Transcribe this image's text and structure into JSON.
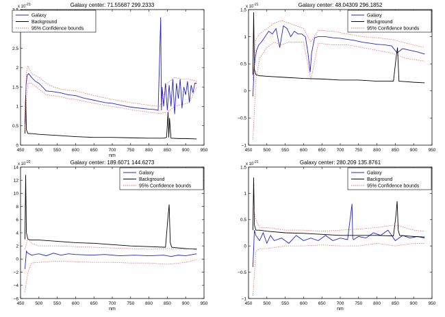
{
  "chart_data": [
    {
      "type": "line",
      "title": "Galaxy center: 71.55687     299.2333",
      "xlabel": "nm",
      "ylabel": "",
      "exponent_label": "x 10",
      "exponent_power": "-21",
      "xlim": [
        450,
        950
      ],
      "ylim": [
        0,
        3.5
      ],
      "xticks": [
        450,
        500,
        550,
        600,
        650,
        700,
        750,
        800,
        850,
        900,
        950
      ],
      "yticks": [
        0,
        0.5,
        1,
        1.5,
        2,
        2.5,
        3,
        3.5
      ],
      "ytick_labels": [
        "0",
        "0.5",
        "1",
        "1.5",
        "2",
        "2.5",
        "3",
        "3.5"
      ],
      "grid": false,
      "legend_position": "top-left",
      "legend": [
        "Galaxy",
        "Background",
        "95% Confidence bounds"
      ],
      "series": [
        {
          "name": "Galaxy",
          "color": "#1f1fd9",
          "x": [
            462,
            465,
            468,
            472,
            476,
            480,
            490,
            500,
            510,
            520,
            540,
            560,
            580,
            600,
            620,
            640,
            660,
            680,
            700,
            720,
            740,
            760,
            780,
            800,
            815,
            825,
            832,
            834,
            836,
            840,
            845,
            850,
            855,
            860,
            865,
            870,
            875,
            880,
            885,
            890,
            895,
            900,
            905,
            910,
            915,
            920,
            925,
            930
          ],
          "y": [
            0.55,
            1.55,
            1.8,
            1.85,
            1.8,
            1.75,
            1.65,
            1.6,
            1.5,
            1.4,
            1.38,
            1.35,
            1.3,
            1.28,
            1.22,
            1.18,
            1.14,
            1.1,
            1.08,
            1.04,
            1.0,
            0.97,
            0.95,
            0.93,
            0.92,
            0.9,
            3.3,
            0.9,
            1.5,
            1.0,
            1.6,
            0.9,
            1.55,
            1.0,
            1.7,
            0.8,
            1.6,
            1.2,
            1.7,
            0.95,
            1.5,
            1.3,
            1.65,
            1.1,
            1.55,
            1.35,
            1.6,
            1.6
          ]
        },
        {
          "name": "Background",
          "color": "#000000",
          "x": [
            462,
            464,
            466,
            470,
            480,
            500,
            550,
            600,
            650,
            700,
            750,
            800,
            840,
            848,
            852,
            854,
            856,
            860,
            880,
            900,
            930
          ],
          "y": [
            0.3,
            1.3,
            0.4,
            0.3,
            0.3,
            0.28,
            0.25,
            0.22,
            0.2,
            0.2,
            0.19,
            0.18,
            0.18,
            0.2,
            0.85,
            0.2,
            0.7,
            0.18,
            0.17,
            0.17,
            0.16
          ]
        },
        {
          "name": "95% Confidence bounds",
          "color": "#ff5050",
          "x": [
            462,
            466,
            470,
            480,
            500,
            520,
            540,
            560,
            580,
            600,
            650,
            700,
            750,
            800,
            830,
            850,
            870,
            890,
            910,
            930
          ],
          "y": [
            0.7,
            1.9,
            2.05,
            1.85,
            1.75,
            1.6,
            1.5,
            1.45,
            1.42,
            1.4,
            1.28,
            1.18,
            1.1,
            1.03,
            1.0,
            1.6,
            1.75,
            1.7,
            1.7,
            1.65
          ]
        },
        {
          "name": "95% Confidence bounds",
          "color": "#ff5050",
          "x": [
            462,
            466,
            470,
            480,
            500,
            520,
            540,
            560,
            580,
            600,
            650,
            700,
            750,
            800,
            830,
            850,
            870,
            890,
            910,
            930
          ],
          "y": [
            0.4,
            1.2,
            1.6,
            1.6,
            1.45,
            1.3,
            1.28,
            1.25,
            1.2,
            1.18,
            1.08,
            1.0,
            0.92,
            0.85,
            0.82,
            0.85,
            1.0,
            1.05,
            1.1,
            1.5
          ]
        }
      ]
    },
    {
      "type": "line",
      "title": "Galaxy center: 48.04309     296.1852",
      "xlabel": "",
      "ylabel": "",
      "exponent_label": "x 10",
      "exponent_power": "-21",
      "xlim": [
        450,
        950
      ],
      "ylim": [
        -1,
        1.5
      ],
      "xticks": [
        450,
        500,
        550,
        600,
        650,
        700,
        750,
        800,
        850,
        900,
        950
      ],
      "yticks": [
        -1,
        -0.5,
        0,
        0.5,
        1,
        1.5
      ],
      "ytick_labels": [
        "−1",
        "−0.5",
        "0",
        "0.5",
        "1",
        "1.5"
      ],
      "grid": false,
      "legend_position": "top-right",
      "legend": [
        "Galaxy",
        "Background",
        "95% Confidence bounds"
      ],
      "series": [
        {
          "name": "Galaxy",
          "color": "#1f1fd9",
          "x": [
            462,
            465,
            468,
            472,
            478,
            485,
            495,
            505,
            515,
            525,
            535,
            545,
            555,
            565,
            575,
            585,
            595,
            605,
            612,
            618,
            622,
            630,
            640,
            660,
            680,
            700,
            720,
            740,
            760,
            780,
            800,
            820,
            840,
            855,
            870,
            890,
            910,
            930
          ],
          "y": [
            -0.1,
            0.4,
            0.6,
            0.75,
            0.85,
            0.9,
            1.0,
            1.1,
            1.05,
            1.15,
            0.8,
            1.2,
            1.15,
            1.0,
            1.1,
            1.05,
            1.05,
            1.0,
            0.7,
            0.35,
            0.7,
            0.98,
            1.0,
            1.0,
            0.98,
            0.97,
            0.95,
            0.93,
            0.9,
            0.88,
            0.86,
            0.85,
            0.83,
            0.7,
            0.78,
            0.75,
            0.72,
            0.68
          ]
        },
        {
          "name": "Background",
          "color": "#000000",
          "x": [
            462,
            464,
            466,
            470,
            480,
            500,
            550,
            600,
            650,
            700,
            750,
            800,
            845,
            852,
            856,
            860,
            880,
            900,
            930
          ],
          "y": [
            0.3,
            1.45,
            0.4,
            0.3,
            0.28,
            0.27,
            0.25,
            0.23,
            0.22,
            0.2,
            0.2,
            0.18,
            0.18,
            0.6,
            0.8,
            0.18,
            0.17,
            0.16,
            0.15
          ]
        },
        {
          "name": "95% Confidence bounds",
          "color": "#ff5050",
          "x": [
            462,
            470,
            480,
            500,
            520,
            540,
            560,
            580,
            600,
            620,
            640,
            680,
            720,
            760,
            800,
            840,
            880,
            930
          ],
          "y": [
            0.2,
            0.95,
            1.05,
            1.15,
            1.25,
            1.3,
            1.25,
            1.2,
            1.15,
            0.9,
            1.12,
            1.1,
            1.05,
            1.0,
            0.98,
            0.95,
            0.88,
            0.8
          ]
        },
        {
          "name": "95% Confidence bounds",
          "color": "#ff5050",
          "x": [
            462,
            470,
            480,
            500,
            520,
            540,
            560,
            580,
            600,
            620,
            640,
            680,
            720,
            760,
            800,
            840,
            880,
            930
          ],
          "y": [
            -0.9,
            0.2,
            0.6,
            0.8,
            0.9,
            0.85,
            0.9,
            0.9,
            0.9,
            0.2,
            0.88,
            0.85,
            0.85,
            0.8,
            0.75,
            0.7,
            0.6,
            0.55
          ]
        }
      ]
    },
    {
      "type": "line",
      "title": "Galaxy center: 189.6071     144.6273",
      "xlabel": "nm",
      "ylabel": "",
      "exponent_label": "x 10",
      "exponent_power": "-22",
      "xlim": [
        450,
        950
      ],
      "ylim": [
        -6,
        14
      ],
      "xticks": [
        450,
        500,
        550,
        600,
        650,
        700,
        750,
        800,
        850,
        900,
        950
      ],
      "yticks": [
        -6,
        -4,
        -2,
        0,
        2,
        4,
        6,
        8,
        10,
        12,
        14
      ],
      "ytick_labels": [
        "−6",
        "−4",
        "−2",
        "0",
        "2",
        "4",
        "6",
        "8",
        "10",
        "12",
        "14"
      ],
      "grid": false,
      "legend_position": "top-right",
      "legend": [
        "Galaxy",
        "Background",
        "95% Confidence bounds"
      ],
      "series": [
        {
          "name": "Galaxy",
          "color": "#1f1fd9",
          "x": [
            462,
            466,
            470,
            480,
            500,
            520,
            540,
            560,
            580,
            600,
            640,
            680,
            720,
            760,
            800,
            840,
            860,
            880,
            900,
            930
          ],
          "y": [
            -1.5,
            1.2,
            0.9,
            0.6,
            0.8,
            0.5,
            0.9,
            0.6,
            0.8,
            0.7,
            0.6,
            0.7,
            0.5,
            0.6,
            0.5,
            0.6,
            0.4,
            0.6,
            0.5,
            0.8
          ]
        },
        {
          "name": "Background",
          "color": "#000000",
          "x": [
            462,
            464,
            466,
            470,
            480,
            500,
            550,
            600,
            650,
            700,
            750,
            800,
            845,
            852,
            855,
            858,
            862,
            880,
            900,
            930
          ],
          "y": [
            3.0,
            12.8,
            4.0,
            3.0,
            2.9,
            2.9,
            2.7,
            2.5,
            2.4,
            2.2,
            2.0,
            1.9,
            1.8,
            6.5,
            8.3,
            2.5,
            1.8,
            1.7,
            1.6,
            1.5
          ]
        },
        {
          "name": "95% Confidence bounds",
          "color": "#ff5050",
          "x": [
            462,
            470,
            480,
            500,
            550,
            600,
            650,
            700,
            750,
            800,
            850,
            900,
            930
          ],
          "y": [
            1.5,
            3.2,
            2.4,
            2.0,
            2.0,
            1.9,
            1.8,
            1.7,
            1.6,
            1.5,
            1.6,
            1.5,
            1.6
          ]
        },
        {
          "name": "95% Confidence bounds",
          "color": "#ff5050",
          "x": [
            462,
            470,
            480,
            500,
            550,
            600,
            650,
            700,
            750,
            800,
            850,
            900,
            930
          ],
          "y": [
            -5.0,
            -2.0,
            -0.6,
            -0.5,
            -0.3,
            -0.4,
            -0.5,
            -0.5,
            -0.6,
            -0.6,
            -0.8,
            -0.5,
            -0.1
          ]
        }
      ]
    },
    {
      "type": "line",
      "title": "Galaxy center: 280.209     135.8761",
      "xlabel": "nm",
      "ylabel": "",
      "exponent_label": "x 10",
      "exponent_power": "-21",
      "xlim": [
        450,
        950
      ],
      "ylim": [
        -1,
        1.5
      ],
      "xticks": [
        450,
        500,
        550,
        600,
        650,
        700,
        750,
        800,
        850,
        900,
        950
      ],
      "yticks": [
        -1,
        -0.5,
        0,
        0.5,
        1,
        1.5
      ],
      "ytick_labels": [
        "−1",
        "−0.5",
        "0",
        "0.5",
        "1",
        "1.5"
      ],
      "grid": false,
      "legend_position": "top-right",
      "legend": [
        "Galaxy",
        "Background",
        "95% Confidence bounds"
      ],
      "series": [
        {
          "name": "Galaxy",
          "color": "#1f1fd9",
          "x": [
            462,
            466,
            470,
            480,
            490,
            500,
            510,
            520,
            540,
            560,
            580,
            600,
            620,
            640,
            660,
            680,
            700,
            720,
            732,
            734,
            736,
            750,
            770,
            790,
            810,
            830,
            850,
            870,
            890,
            910,
            930
          ],
          "y": [
            -0.4,
            0.3,
            0.2,
            0.1,
            0.25,
            0.05,
            0.2,
            0.1,
            0.15,
            0.05,
            0.2,
            0.1,
            0.15,
            0.1,
            0.2,
            0.1,
            0.15,
            0.12,
            0.8,
            0.15,
            0.12,
            0.18,
            0.15,
            0.25,
            0.2,
            0.3,
            0.1,
            0.2,
            0.15,
            0.18,
            0.15
          ]
        },
        {
          "name": "Background",
          "color": "#000000",
          "x": [
            462,
            464,
            466,
            470,
            480,
            500,
            550,
            600,
            650,
            700,
            750,
            800,
            845,
            852,
            855,
            858,
            862,
            880,
            900,
            930
          ],
          "y": [
            0.3,
            1.3,
            0.4,
            0.3,
            0.3,
            0.28,
            0.25,
            0.24,
            0.22,
            0.2,
            0.2,
            0.2,
            0.19,
            0.6,
            0.85,
            0.3,
            0.2,
            0.19,
            0.18,
            0.17
          ]
        },
        {
          "name": "95% Confidence bounds",
          "color": "#ff5050",
          "x": [
            462,
            470,
            480,
            500,
            550,
            600,
            650,
            700,
            750,
            800,
            850,
            900,
            930
          ],
          "y": [
            0.8,
            0.5,
            0.35,
            0.35,
            0.3,
            0.3,
            0.28,
            0.3,
            0.32,
            0.35,
            0.4,
            0.3,
            0.28
          ]
        },
        {
          "name": "95% Confidence bounds",
          "color": "#ff5050",
          "x": [
            462,
            470,
            480,
            500,
            550,
            600,
            650,
            700,
            750,
            800,
            850,
            900,
            930
          ],
          "y": [
            -0.95,
            -0.1,
            -0.05,
            -0.05,
            0.0,
            0.0,
            0.02,
            0.0,
            0.0,
            0.05,
            0.0,
            0.05,
            0.05
          ]
        }
      ]
    }
  ]
}
